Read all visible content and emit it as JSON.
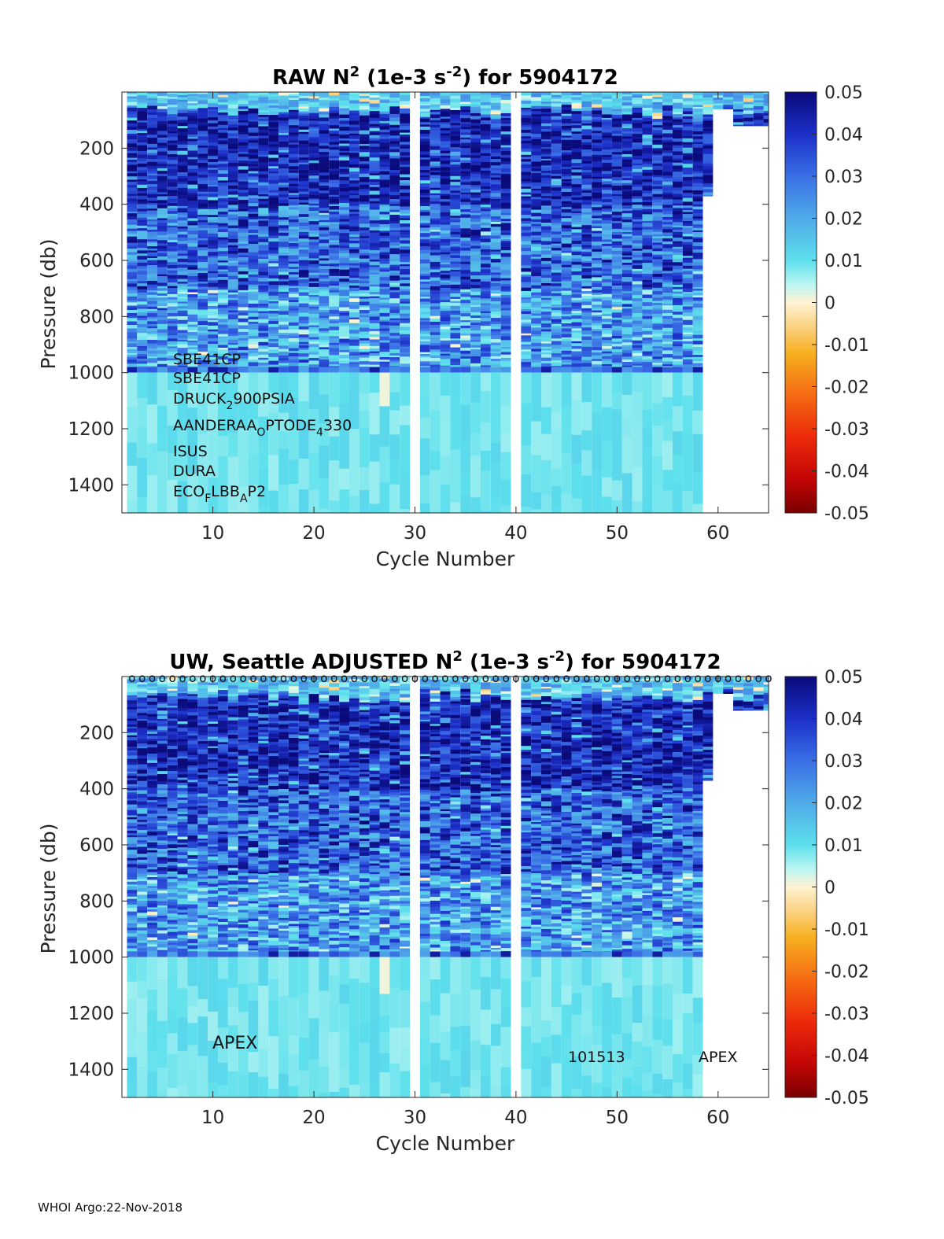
{
  "chart_data": [
    {
      "type": "heatmap",
      "title": "RAW N² (1e-3 s⁻²) for 5904172",
      "title_parts": {
        "pre": "RAW N",
        "sup1": "2",
        "mid": " (1e-3 s",
        "sup2": "-2",
        "post": ") for 5904172"
      },
      "xlabel": "Cycle Number",
      "ylabel": "Pressure (db)",
      "xlim": [
        1,
        65
      ],
      "ylim": [
        1500,
        0
      ],
      "xticks": [
        "10",
        "20",
        "30",
        "40",
        "50",
        "60"
      ],
      "yticks": [
        "200",
        "400",
        "600",
        "800",
        "1000",
        "1200",
        "1400"
      ],
      "colorbar": {
        "ticks": [
          "0.05",
          "0.04",
          "0.03",
          "0.02",
          "0.01",
          "0",
          "-0.01",
          "-0.02",
          "-0.03",
          "-0.04",
          "-0.05"
        ],
        "range": [
          -0.05,
          0.05
        ]
      },
      "gaps_cycles": [
        30,
        40
      ],
      "deep_cycles": [
        2,
        58
      ],
      "annotations": [
        {
          "text": "SBE41CP"
        },
        {
          "text": "SBE41CP"
        },
        {
          "text": "DRUCK",
          "sub": "2",
          "post": "900PSIA"
        },
        {
          "text": "AANDERAA",
          "sub": "O",
          "post": "PTODE",
          "sub2": "4",
          "post2": "330"
        },
        {
          "text": "ISUS"
        },
        {
          "text": "DURA"
        },
        {
          "text": "ECO",
          "sub": "F",
          "post": "LBB",
          "sub2": "A",
          "post2": "P2"
        }
      ]
    },
    {
      "type": "heatmap",
      "title": "UW, Seattle  ADJUSTED N² (1e-3 s⁻²) for 5904172",
      "title_parts": {
        "pre": "UW, Seattle  ADJUSTED N",
        "sup1": "2",
        "mid": " (1e-3 s",
        "sup2": "-2",
        "post": ") for 5904172"
      },
      "xlabel": "Cycle Number",
      "ylabel": "Pressure (db)",
      "xlim": [
        1,
        65
      ],
      "ylim": [
        1500,
        0
      ],
      "xticks": [
        "10",
        "20",
        "30",
        "40",
        "50",
        "60"
      ],
      "yticks": [
        "200",
        "400",
        "600",
        "800",
        "1000",
        "1200",
        "1400"
      ],
      "colorbar": {
        "ticks": [
          "0.05",
          "0.04",
          "0.03",
          "0.02",
          "0.01",
          "0",
          "-0.01",
          "-0.02",
          "-0.03",
          "-0.04",
          "-0.05"
        ],
        "range": [
          -0.05,
          0.05
        ]
      },
      "gaps_cycles": [
        30,
        40
      ],
      "deep_cycles": [
        2,
        58
      ],
      "qc_marker": "o",
      "annotations": [
        {
          "text": "APEX"
        },
        {
          "text": "101513"
        },
        {
          "text": "APEX"
        }
      ]
    }
  ],
  "footer": "WHOI Argo:22-Nov-2018"
}
